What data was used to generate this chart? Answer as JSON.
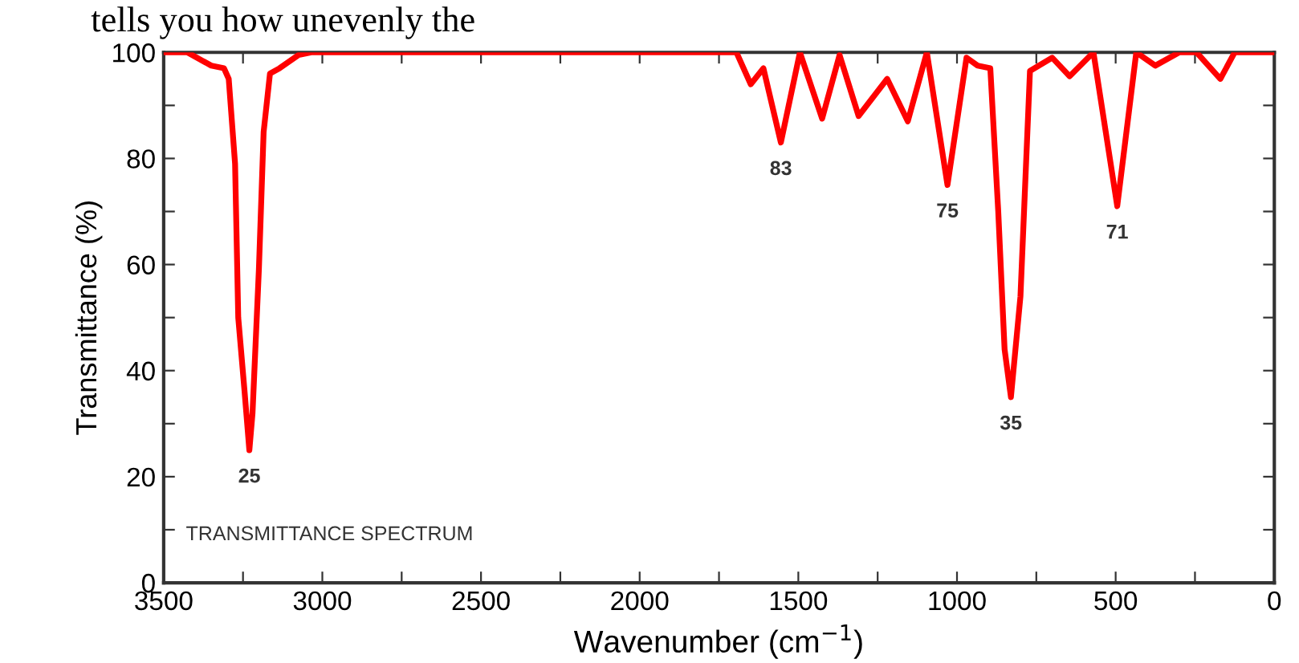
{
  "chart_data": {
    "type": "line",
    "xlabel": "Wavenumber (cm$^{−1}$)",
    "ylabel": "Transmittance (%)",
    "xlim": [
      3500,
      0
    ],
    "ylim": [
      0,
      100
    ],
    "xticks": [
      3500,
      {
        "value": 3250,
        "label": null
      },
      3000,
      {
        "value": 2750,
        "label": null
      },
      2500,
      {
        "value": 2250,
        "label": null
      },
      2000,
      {
        "value": 1750,
        "label": null
      },
      1500,
      {
        "value": 1250,
        "label": null
      },
      1000,
      {
        "value": 750,
        "label": null
      },
      500,
      {
        "value": 250,
        "label": null
      },
      0
    ],
    "yticks": [
      0,
      {
        "value": 10,
        "label": null
      },
      20,
      {
        "value": 30,
        "label": null
      },
      40,
      {
        "value": 50,
        "label": null
      },
      60,
      {
        "value": 70,
        "label": null
      },
      80,
      {
        "value": 90,
        "label": null
      },
      100
    ],
    "grid": false,
    "marker": "none",
    "line_style": "solid",
    "series": [
      {
        "color": "#ff0000",
        "x": [
          3500,
          3425,
          3350,
          3310,
          3295,
          3275,
          3265,
          3245,
          3230,
          3220,
          3200,
          3185,
          3165,
          3135,
          3075,
          3035,
          1760,
          1695,
          1650,
          1610,
          1555,
          1495,
          1425,
          1370,
          1310,
          1220,
          1155,
          1095,
          1030,
          970,
          935,
          895,
          870,
          850,
          830,
          800,
          770,
          700,
          645,
          570,
          495,
          435,
          375,
          300,
          245,
          170,
          125,
          0
        ],
        "values": [
          100,
          100,
          97.5,
          97,
          95,
          79,
          50,
          36,
          25,
          32,
          59,
          85,
          96,
          97,
          99.5,
          100,
          100,
          100,
          94,
          97,
          83,
          100,
          87.5,
          99.5,
          88,
          95,
          87,
          100,
          75,
          99,
          97.5,
          97,
          70,
          44,
          35,
          54,
          96.5,
          99,
          95.5,
          100,
          71,
          100,
          97.5,
          100,
          100,
          95,
          100,
          100
        ]
      }
    ],
    "annotations": [
      {
        "text": "25",
        "x": 3230,
        "y": 25
      },
      {
        "text": "83",
        "x": 1555,
        "y": 83
      },
      {
        "text": "75",
        "x": 1030,
        "y": 75
      },
      {
        "text": "35",
        "x": 830,
        "y": 35
      },
      {
        "text": "71",
        "x": 495,
        "y": 71
      },
      "TRANSMITTANCE SPECTRUM",
      "tells you how unevenly the"
    ]
  }
}
